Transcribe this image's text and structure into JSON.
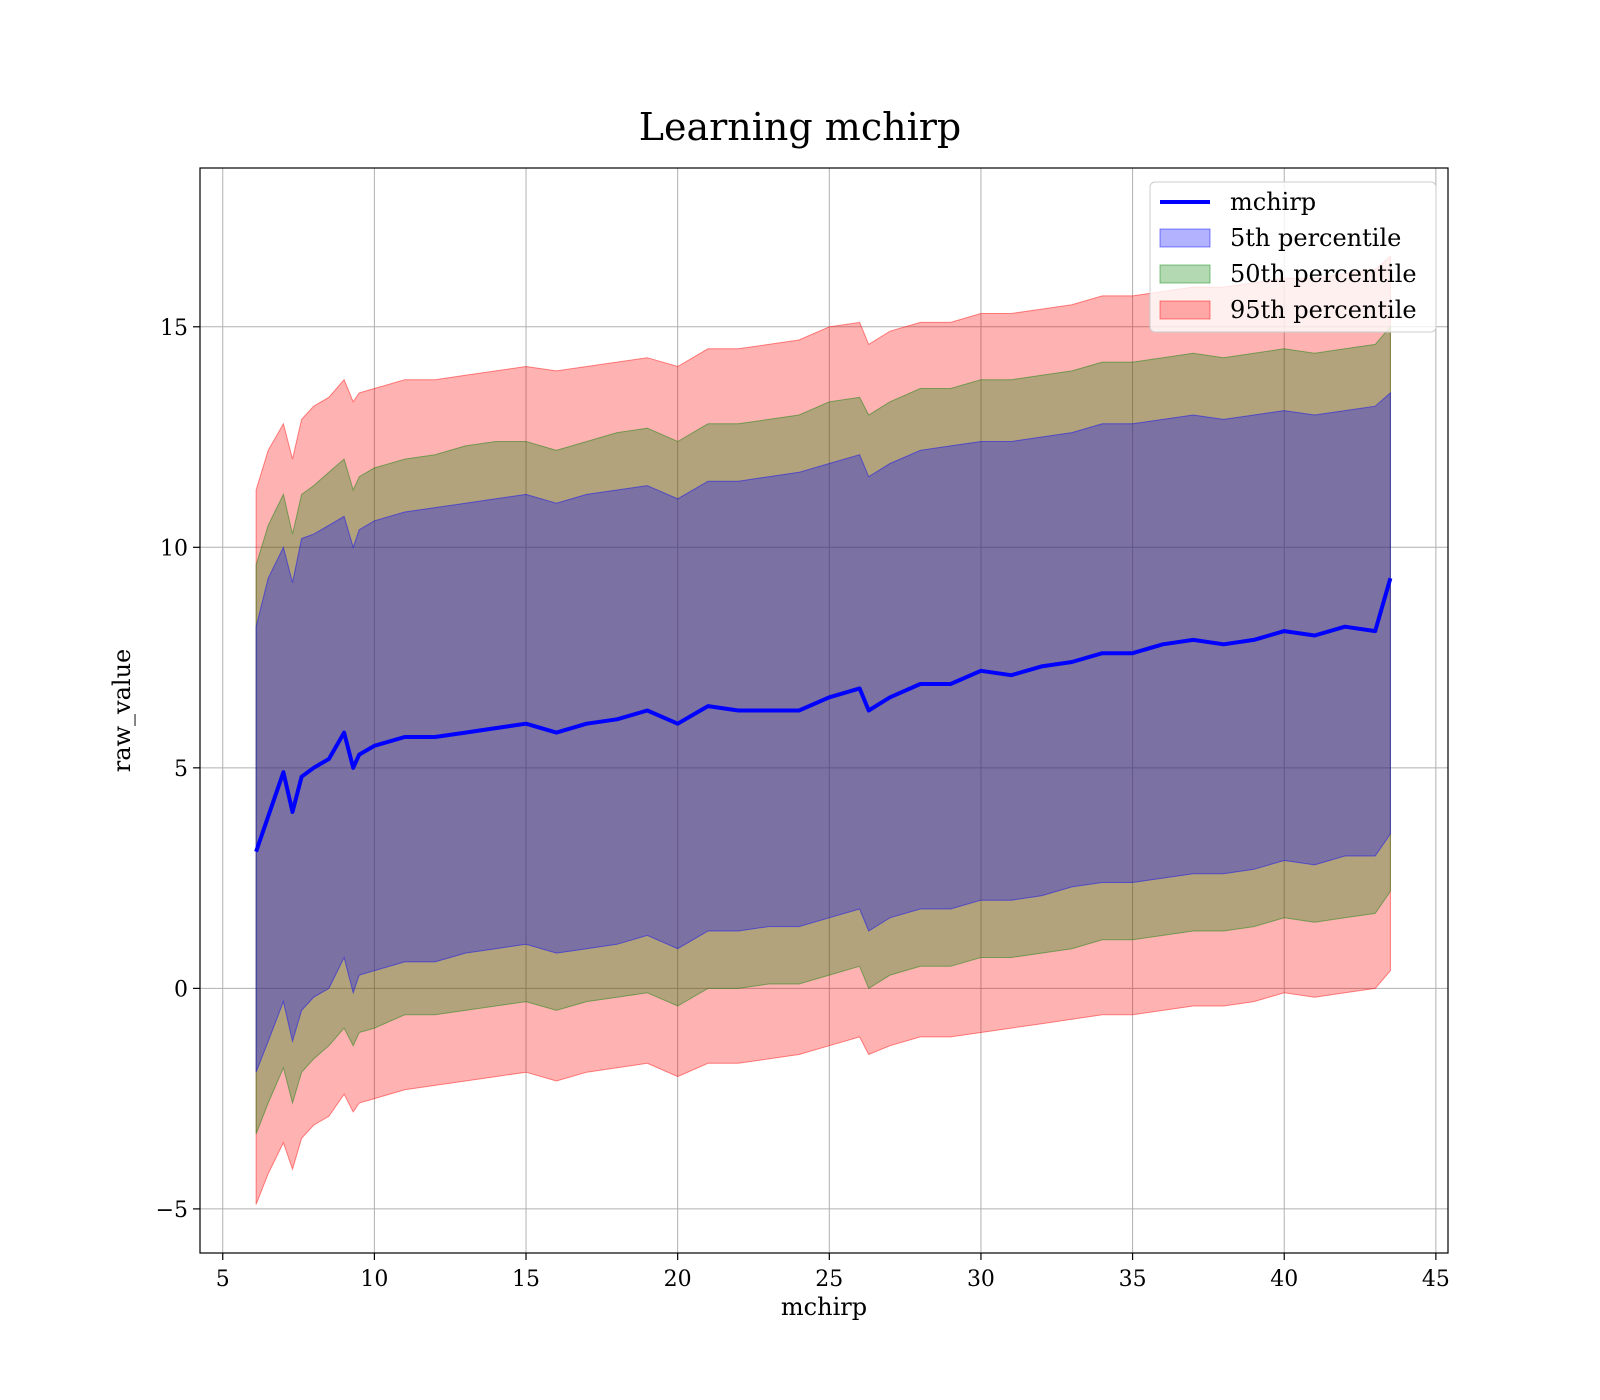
{
  "chart_data": {
    "type": "line",
    "title": "Learning mchirp",
    "xlabel": "mchirp",
    "ylabel": "raw_value",
    "xlim": [
      4.25,
      45.4
    ],
    "ylim": [
      -6.0,
      18.6
    ],
    "xticks": [
      5,
      10,
      15,
      20,
      25,
      30,
      35,
      40,
      45
    ],
    "yticks": [
      -5,
      0,
      5,
      10,
      15
    ],
    "xtick_labels": [
      "5",
      "10",
      "15",
      "20",
      "25",
      "30",
      "35",
      "40",
      "45"
    ],
    "ytick_labels": [
      "−5",
      "0",
      "5",
      "10",
      "15"
    ],
    "grid": true,
    "legend_position": "top-right",
    "x": [
      6.1,
      6.5,
      7.0,
      7.3,
      7.6,
      8.0,
      8.5,
      9.0,
      9.3,
      9.5,
      10.0,
      11.0,
      12.0,
      13.0,
      14.0,
      15.0,
      16.0,
      17.0,
      18.0,
      19.0,
      20.0,
      21.0,
      22.0,
      23.0,
      24.0,
      25.0,
      26.0,
      26.3,
      27.0,
      28.0,
      29.0,
      30.0,
      31.0,
      32.0,
      33.0,
      34.0,
      35.0,
      36.0,
      37.0,
      38.0,
      39.0,
      40.0,
      41.0,
      42.0,
      43.0,
      43.5
    ],
    "series": [
      {
        "name": "mchirp",
        "kind": "line",
        "color": "#0000ff",
        "values": [
          3.1,
          3.9,
          4.9,
          4.0,
          4.8,
          5.0,
          5.2,
          5.8,
          5.0,
          5.3,
          5.5,
          5.7,
          5.7,
          5.8,
          5.9,
          6.0,
          5.8,
          6.0,
          6.1,
          6.3,
          6.0,
          6.4,
          6.3,
          6.3,
          6.3,
          6.6,
          6.8,
          6.3,
          6.6,
          6.9,
          6.9,
          7.2,
          7.1,
          7.3,
          7.4,
          7.6,
          7.6,
          7.8,
          7.9,
          7.8,
          7.9,
          8.1,
          8.0,
          8.2,
          8.1,
          9.3
        ]
      },
      {
        "name": "5th percentile",
        "kind": "band",
        "color": "#0000ff",
        "upper": [
          8.2,
          9.3,
          10.0,
          9.2,
          10.2,
          10.3,
          10.5,
          10.7,
          10.0,
          10.4,
          10.6,
          10.8,
          10.9,
          11.0,
          11.1,
          11.2,
          11.0,
          11.2,
          11.3,
          11.4,
          11.1,
          11.5,
          11.5,
          11.6,
          11.7,
          11.9,
          12.1,
          11.6,
          11.9,
          12.2,
          12.3,
          12.4,
          12.4,
          12.5,
          12.6,
          12.8,
          12.8,
          12.9,
          13.0,
          12.9,
          13.0,
          13.1,
          13.0,
          13.1,
          13.2,
          13.5
        ],
        "lower": [
          -1.9,
          -1.2,
          -0.3,
          -1.2,
          -0.5,
          -0.2,
          0.0,
          0.7,
          -0.1,
          0.3,
          0.4,
          0.6,
          0.6,
          0.8,
          0.9,
          1.0,
          0.8,
          0.9,
          1.0,
          1.2,
          0.9,
          1.3,
          1.3,
          1.4,
          1.4,
          1.6,
          1.8,
          1.3,
          1.6,
          1.8,
          1.8,
          2.0,
          2.0,
          2.1,
          2.3,
          2.4,
          2.4,
          2.5,
          2.6,
          2.6,
          2.7,
          2.9,
          2.8,
          3.0,
          3.0,
          3.5
        ]
      },
      {
        "name": "50th percentile",
        "kind": "band",
        "color": "#008000",
        "upper": [
          9.6,
          10.5,
          11.2,
          10.3,
          11.2,
          11.4,
          11.7,
          12.0,
          11.3,
          11.6,
          11.8,
          12.0,
          12.1,
          12.3,
          12.4,
          12.4,
          12.2,
          12.4,
          12.6,
          12.7,
          12.4,
          12.8,
          12.8,
          12.9,
          13.0,
          13.3,
          13.4,
          13.0,
          13.3,
          13.6,
          13.6,
          13.8,
          13.8,
          13.9,
          14.0,
          14.2,
          14.2,
          14.3,
          14.4,
          14.3,
          14.4,
          14.5,
          14.4,
          14.5,
          14.6,
          15.0
        ],
        "lower": [
          -3.3,
          -2.6,
          -1.8,
          -2.6,
          -1.9,
          -1.6,
          -1.3,
          -0.9,
          -1.3,
          -1.0,
          -0.9,
          -0.6,
          -0.6,
          -0.5,
          -0.4,
          -0.3,
          -0.5,
          -0.3,
          -0.2,
          -0.1,
          -0.4,
          0.0,
          0.0,
          0.1,
          0.1,
          0.3,
          0.5,
          0.0,
          0.3,
          0.5,
          0.5,
          0.7,
          0.7,
          0.8,
          0.9,
          1.1,
          1.1,
          1.2,
          1.3,
          1.3,
          1.4,
          1.6,
          1.5,
          1.6,
          1.7,
          2.2
        ]
      },
      {
        "name": "95th percentile",
        "kind": "band",
        "color": "#ff0000",
        "upper": [
          11.3,
          12.2,
          12.8,
          12.0,
          12.9,
          13.2,
          13.4,
          13.8,
          13.3,
          13.5,
          13.6,
          13.8,
          13.8,
          13.9,
          14.0,
          14.1,
          14.0,
          14.1,
          14.2,
          14.3,
          14.1,
          14.5,
          14.5,
          14.6,
          14.7,
          15.0,
          15.1,
          14.6,
          14.9,
          15.1,
          15.1,
          15.3,
          15.3,
          15.4,
          15.5,
          15.7,
          15.7,
          15.8,
          15.9,
          15.9,
          16.0,
          16.1,
          16.1,
          16.2,
          16.3,
          16.6
        ],
        "lower": [
          -4.9,
          -4.2,
          -3.5,
          -4.1,
          -3.4,
          -3.1,
          -2.9,
          -2.4,
          -2.8,
          -2.6,
          -2.5,
          -2.3,
          -2.2,
          -2.1,
          -2.0,
          -1.9,
          -2.1,
          -1.9,
          -1.8,
          -1.7,
          -2.0,
          -1.7,
          -1.7,
          -1.6,
          -1.5,
          -1.3,
          -1.1,
          -1.5,
          -1.3,
          -1.1,
          -1.1,
          -1.0,
          -0.9,
          -0.8,
          -0.7,
          -0.6,
          -0.6,
          -0.5,
          -0.4,
          -0.4,
          -0.3,
          -0.1,
          -0.2,
          -0.1,
          0.0,
          0.4
        ]
      }
    ]
  }
}
